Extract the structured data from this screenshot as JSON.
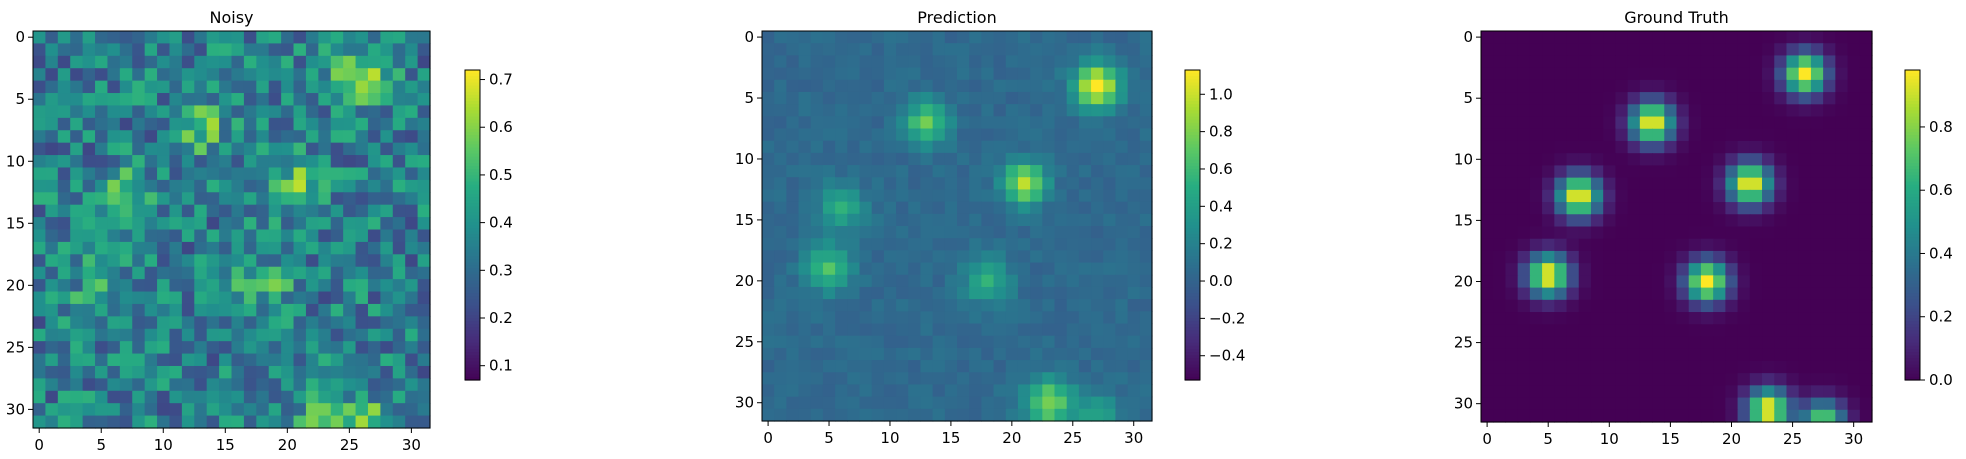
{
  "chart_data": [
    {
      "type": "heatmap",
      "title": "Noisy",
      "xlabel": "",
      "ylabel": "",
      "shape": [
        32,
        32
      ],
      "colormap": "viridis",
      "x_ticks": [
        0,
        5,
        10,
        15,
        20,
        25,
        30
      ],
      "y_ticks": [
        0,
        5,
        10,
        15,
        20,
        25,
        30
      ],
      "value_range": [
        0.07,
        0.72
      ],
      "colorbar_ticks": [
        0.1,
        0.2,
        0.3,
        0.4,
        0.5,
        0.6,
        0.7
      ],
      "colorbar_labels": [
        "0.1",
        "0.2",
        "0.3",
        "0.4",
        "0.5",
        "0.6",
        "0.7"
      ],
      "background_level": 0.35,
      "noise_amplitude": 0.28,
      "blobs": [
        {
          "row": 3,
          "col": 26,
          "amplitude": 0.28,
          "sigma": 1.5
        },
        {
          "row": 7,
          "col": 13,
          "amplitude": 0.2,
          "sigma": 1.5
        },
        {
          "row": 13,
          "col": 7,
          "amplitude": 0.2,
          "sigma": 1.5
        },
        {
          "row": 12,
          "col": 21,
          "amplitude": 0.2,
          "sigma": 1.5
        },
        {
          "row": 20,
          "col": 5,
          "amplitude": 0.15,
          "sigma": 1.5
        },
        {
          "row": 20,
          "col": 18,
          "amplitude": 0.15,
          "sigma": 1.5
        },
        {
          "row": 30,
          "col": 23,
          "amplitude": 0.2,
          "sigma": 1.5
        },
        {
          "row": 31,
          "col": 27,
          "amplitude": 0.15,
          "sigma": 1.5
        }
      ]
    },
    {
      "type": "heatmap",
      "title": "Prediction",
      "xlabel": "",
      "ylabel": "",
      "shape": [
        32,
        32
      ],
      "colormap": "viridis",
      "x_ticks": [
        0,
        5,
        10,
        15,
        20,
        25,
        30
      ],
      "y_ticks": [
        0,
        5,
        10,
        15,
        20,
        25,
        30
      ],
      "value_range": [
        -0.53,
        1.13
      ],
      "colorbar_ticks": [
        -0.4,
        -0.2,
        0.0,
        0.2,
        0.4,
        0.6,
        0.8,
        1.0
      ],
      "colorbar_labels": [
        "−0.4",
        "−0.2",
        "0.0",
        "0.2",
        "0.4",
        "0.6",
        "0.8",
        "1.0"
      ],
      "background_level": 0.05,
      "noise_amplitude": 0.12,
      "blobs": [
        {
          "row": 4,
          "col": 27,
          "amplitude": 1.05,
          "sigma": 1.3
        },
        {
          "row": 7,
          "col": 13,
          "amplitude": 0.7,
          "sigma": 1.2
        },
        {
          "row": 12,
          "col": 21,
          "amplitude": 0.9,
          "sigma": 1.2
        },
        {
          "row": 14,
          "col": 6,
          "amplitude": 0.45,
          "sigma": 1.3
        },
        {
          "row": 19,
          "col": 5,
          "amplitude": 0.6,
          "sigma": 1.3
        },
        {
          "row": 20,
          "col": 18,
          "amplitude": 0.5,
          "sigma": 1.3
        },
        {
          "row": 30,
          "col": 23,
          "amplitude": 0.75,
          "sigma": 1.4
        },
        {
          "row": 31,
          "col": 27,
          "amplitude": 0.35,
          "sigma": 1.3
        }
      ]
    },
    {
      "type": "heatmap",
      "title": "Ground Truth",
      "xlabel": "",
      "ylabel": "",
      "shape": [
        32,
        32
      ],
      "colormap": "viridis",
      "x_ticks": [
        0,
        5,
        10,
        15,
        20,
        25,
        30
      ],
      "y_ticks": [
        0,
        5,
        10,
        15,
        20,
        25,
        30
      ],
      "value_range": [
        0.0,
        0.98
      ],
      "colorbar_ticks": [
        0.0,
        0.2,
        0.4,
        0.6,
        0.8
      ],
      "colorbar_labels": [
        "0.0",
        "0.2",
        "0.4",
        "0.6",
        "0.8"
      ],
      "background_level": 0.0,
      "noise_amplitude": 0.0,
      "blobs": [
        {
          "row": 3,
          "col": 26,
          "amplitude": 1.0,
          "sigma": 1.2
        },
        {
          "row": 7,
          "col": 13.5,
          "amplitude": 1.0,
          "sigma": 1.2
        },
        {
          "row": 13,
          "col": 7.5,
          "amplitude": 1.0,
          "sigma": 1.2
        },
        {
          "row": 12,
          "col": 21.5,
          "amplitude": 1.0,
          "sigma": 1.2
        },
        {
          "row": 19.5,
          "col": 5,
          "amplitude": 1.0,
          "sigma": 1.2
        },
        {
          "row": 20,
          "col": 18,
          "amplitude": 1.0,
          "sigma": 1.2
        },
        {
          "row": 30.5,
          "col": 23,
          "amplitude": 1.0,
          "sigma": 1.2
        },
        {
          "row": 31.5,
          "col": 27.5,
          "amplitude": 0.8,
          "sigma": 1.2
        }
      ]
    }
  ]
}
